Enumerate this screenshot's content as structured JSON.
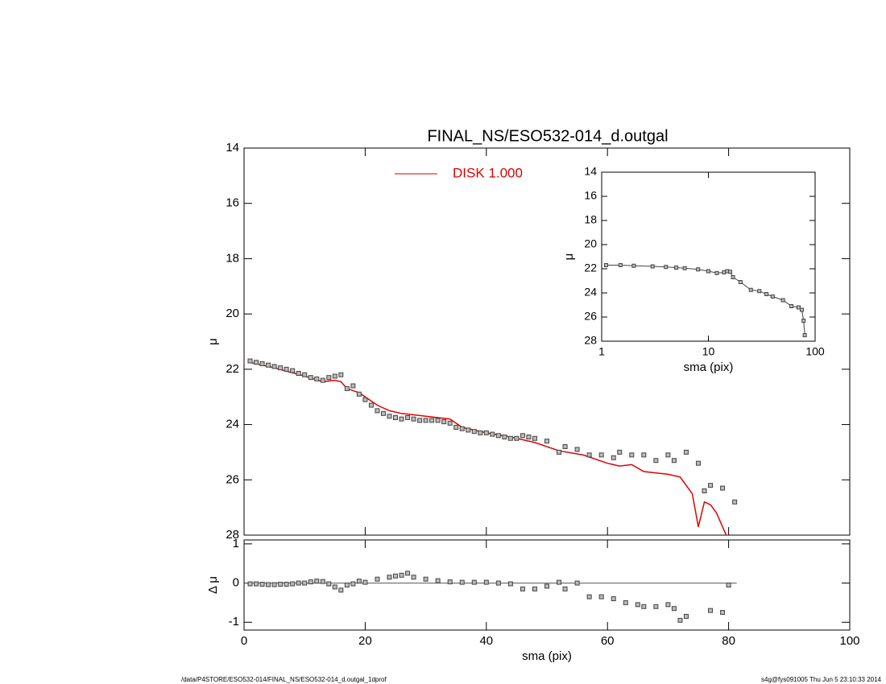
{
  "chart_data": [
    {
      "type": "scatter",
      "title": "FINAL_NS/ESO532-014_d.outgal",
      "ylabel": "μ",
      "xlim": [
        0,
        100
      ],
      "ylim": [
        28,
        14
      ],
      "xticks": [
        0,
        20,
        40,
        60,
        80,
        100
      ],
      "yticks": [
        14,
        16,
        18,
        20,
        22,
        24,
        26,
        28
      ],
      "series": [
        {
          "name": "DISK  1.000",
          "color": "#e00000",
          "line": true,
          "x": [
            1,
            5,
            10,
            13,
            15,
            16,
            17,
            19,
            22,
            24,
            26,
            28,
            30,
            34,
            36,
            40,
            44,
            48,
            52,
            56,
            60,
            62,
            64,
            66,
            70,
            72,
            74,
            75,
            76,
            77,
            78,
            80
          ],
          "values": [
            21.75,
            21.95,
            22.25,
            22.45,
            22.4,
            22.45,
            22.7,
            22.85,
            23.3,
            23.5,
            23.6,
            23.65,
            23.7,
            23.8,
            24.1,
            24.3,
            24.45,
            24.65,
            24.95,
            25.1,
            25.4,
            25.5,
            25.45,
            25.7,
            25.8,
            25.9,
            26.5,
            27.7,
            26.8,
            26.9,
            27.2,
            28.2
          ]
        },
        {
          "color": "#444444",
          "x": [
            1,
            2,
            3,
            4,
            5,
            6,
            7,
            8,
            9,
            10,
            11,
            12,
            13,
            14,
            15,
            16,
            17,
            18,
            19,
            20,
            21,
            22,
            23,
            24,
            25,
            26,
            27,
            28,
            29,
            30,
            31,
            32,
            33,
            34,
            35,
            36,
            37,
            38,
            39,
            40,
            41,
            42,
            43,
            44,
            45,
            46,
            47,
            48,
            50,
            52,
            53,
            55,
            57,
            59,
            61,
            62,
            64,
            66,
            68,
            70,
            71,
            73,
            75,
            76,
            77,
            79,
            81
          ],
          "values": [
            21.7,
            21.75,
            21.8,
            21.85,
            21.9,
            21.95,
            22.0,
            22.05,
            22.15,
            22.2,
            22.3,
            22.35,
            22.4,
            22.3,
            22.25,
            22.2,
            22.7,
            22.6,
            22.9,
            23.1,
            23.3,
            23.5,
            23.6,
            23.7,
            23.75,
            23.8,
            23.75,
            23.8,
            23.85,
            23.85,
            23.85,
            23.85,
            23.9,
            23.95,
            24.1,
            24.15,
            24.2,
            24.25,
            24.3,
            24.3,
            24.35,
            24.4,
            24.45,
            24.5,
            24.5,
            24.4,
            24.45,
            24.5,
            24.6,
            25.0,
            24.8,
            24.9,
            25.1,
            25.1,
            25.2,
            25.0,
            25.1,
            25.1,
            25.3,
            25.1,
            25.3,
            25.0,
            25.4,
            26.4,
            26.2,
            26.3,
            26.8
          ]
        }
      ]
    },
    {
      "type": "scatter",
      "xlabel": "sma (pix)",
      "ylabel": "Δ μ",
      "xlim": [
        0,
        100
      ],
      "ylim": [
        -1.2,
        1.1
      ],
      "xticks": [
        0,
        20,
        40,
        60,
        80,
        100
      ],
      "yticks": [
        -1,
        0,
        1
      ],
      "hline": 0,
      "series": [
        {
          "color": "#444444",
          "x": [
            1,
            2,
            3,
            4,
            5,
            6,
            7,
            8,
            9,
            10,
            11,
            12,
            13,
            14,
            15,
            16,
            17,
            18,
            19,
            20,
            22,
            24,
            25,
            26,
            27,
            28,
            30,
            32,
            34,
            36,
            38,
            40,
            42,
            44,
            46,
            48,
            50,
            52,
            53,
            55,
            57,
            59,
            61,
            63,
            65,
            66,
            68,
            70,
            71,
            72,
            73,
            77,
            79,
            80
          ],
          "values": [
            -0.02,
            -0.02,
            -0.03,
            -0.04,
            -0.04,
            -0.03,
            -0.03,
            -0.02,
            0,
            0,
            0.03,
            0.05,
            0.04,
            -0.02,
            -0.1,
            -0.18,
            -0.05,
            -0.02,
            0.05,
            0.02,
            0.1,
            0.15,
            0.18,
            0.2,
            0.25,
            0.15,
            0.1,
            0.06,
            0.03,
            0.02,
            0.02,
            0.02,
            0.0,
            -0.02,
            -0.15,
            -0.15,
            -0.08,
            0.02,
            -0.15,
            0,
            -0.35,
            -0.35,
            -0.4,
            -0.5,
            -0.55,
            -0.6,
            -0.6,
            -0.55,
            -0.65,
            -0.95,
            -0.85,
            -0.7,
            -0.75,
            -0.05
          ]
        }
      ]
    },
    {
      "type": "scatter",
      "xlabel": "sma (pix)",
      "ylabel": "μ",
      "xlog": true,
      "xlim": [
        1,
        100
      ],
      "ylim": [
        28,
        14
      ],
      "xticks": [
        1,
        10,
        100
      ],
      "yticks": [
        14,
        16,
        18,
        20,
        22,
        24,
        26,
        28
      ],
      "series": [
        {
          "color": "#444444",
          "line": true,
          "x": [
            1.1,
            1.5,
            2,
            3,
            4,
            5,
            6,
            8,
            10,
            12,
            14,
            15,
            16,
            17,
            20,
            25,
            30,
            35,
            40,
            50,
            60,
            70,
            75,
            78,
            80
          ],
          "values": [
            21.7,
            21.7,
            21.75,
            21.8,
            21.85,
            21.9,
            21.95,
            22.05,
            22.2,
            22.35,
            22.3,
            22.2,
            22.25,
            22.7,
            23.1,
            23.75,
            23.85,
            24.1,
            24.3,
            24.6,
            25.1,
            25.2,
            25.4,
            26.3,
            27.5
          ]
        }
      ]
    }
  ],
  "footer": {
    "left": "/data/P4STORE/ESO532-014/FINAL_NS/ESO532-014_d.outgal_1dprof",
    "right": "s4g@fys091005  Thu Jun  5 23:10:33 2014"
  }
}
